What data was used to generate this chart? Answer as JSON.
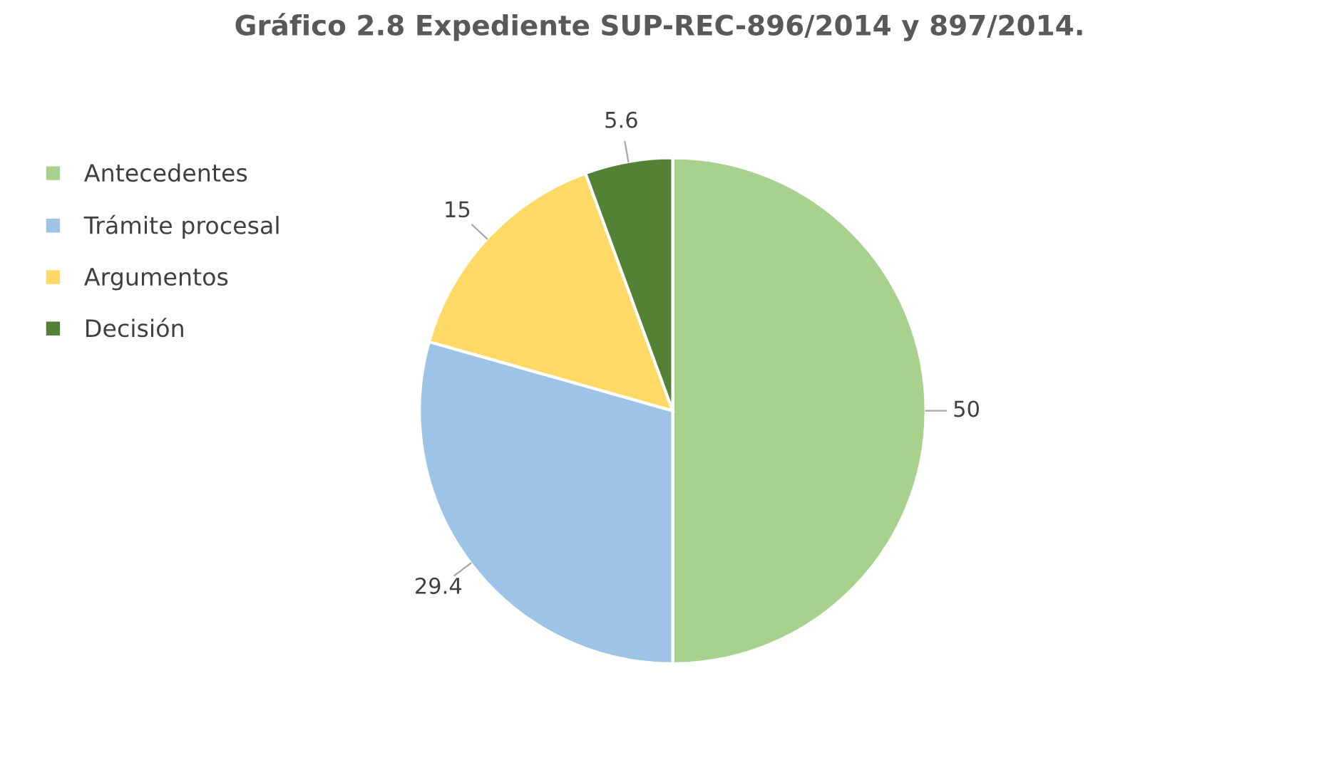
{
  "chart_data": {
    "type": "pie",
    "title": "Gráfico 2.8 Expediente SUP-REC-896/2014 y 897/2014.",
    "categories": [
      "Antecedentes",
      "Trámite procesal",
      "Argumentos",
      "Decisión"
    ],
    "values": [
      50,
      29.4,
      15,
      5.6
    ],
    "colors": [
      "#a9d18e",
      "#9dc3e6",
      "#ffd966",
      "#548235"
    ],
    "data_labels": true,
    "legend": "left"
  }
}
